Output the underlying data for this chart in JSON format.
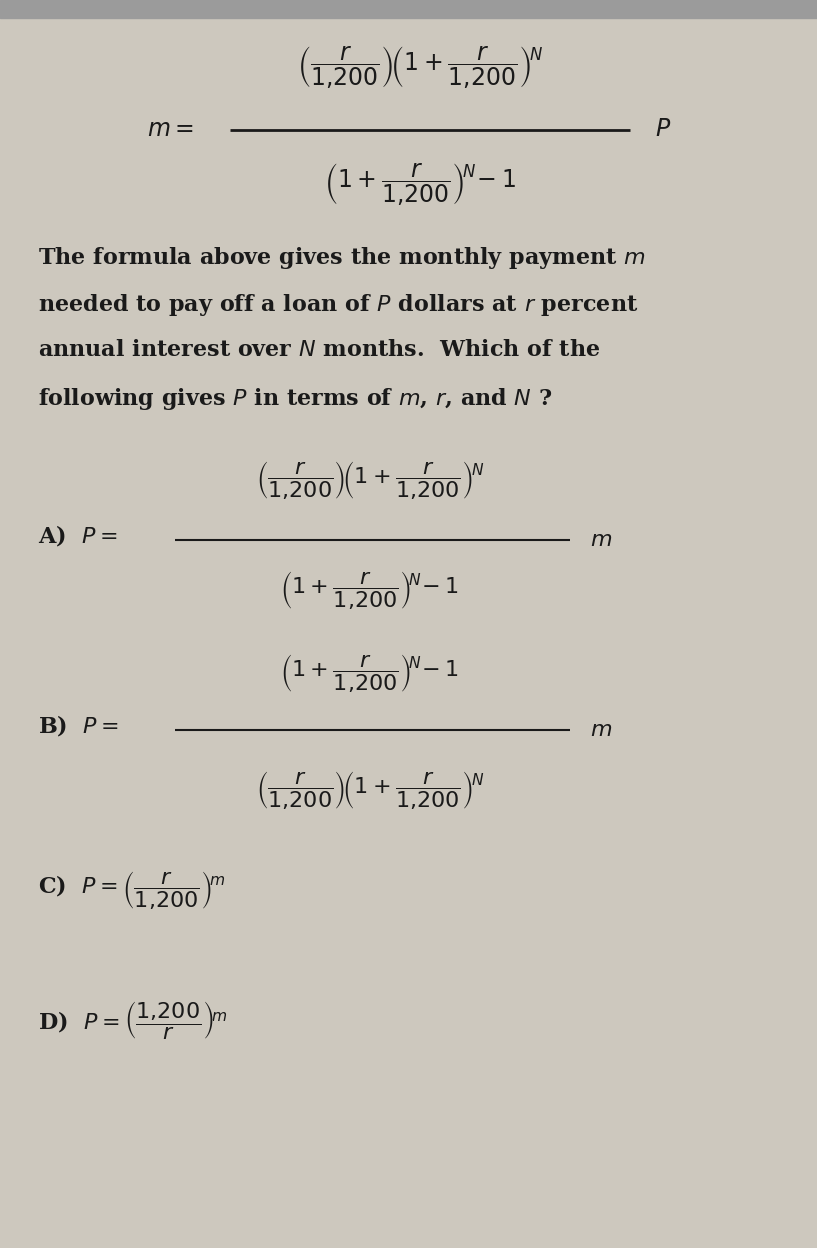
{
  "bg_color": "#cdc8be",
  "text_color": "#1a1a1a",
  "fig_width": 8.17,
  "fig_height": 12.48,
  "dpi": 100,
  "main_formula_num": "$\\left(\\dfrac{r}{1{,}200}\\right)\\!\\left(1+\\dfrac{r}{1{,}200}\\right)^{\\!N}$",
  "main_formula_den": "$\\left(1+\\dfrac{r}{1{,}200}\\right)^{\\!N}\\!-1$",
  "desc_line1": "The formula above gives the monthly payment $m$",
  "desc_line2": "needed to pay off a loan of $P$ dollars at $r$ percent",
  "desc_line3": "annual interest over $N$ months.  Which of the",
  "desc_line4": "following gives $P$ in terms of $m$, $r$, and $N$ ?",
  "A_num": "$\\left(\\dfrac{r}{1{,}200}\\right)\\!\\left(1+\\dfrac{r}{1{,}200}\\right)^{\\!N}$",
  "A_den": "$\\left(1+\\dfrac{r}{1{,}200}\\right)^{\\!N}\\!-1$",
  "B_num": "$\\left(1+\\dfrac{r}{1{,}200}\\right)^{\\!N}\\!-1$",
  "B_den": "$\\left(\\dfrac{r}{1{,}200}\\right)\\!\\left(1+\\dfrac{r}{1{,}200}\\right)^{\\!N}$",
  "C_formula": "$P=\\left(\\dfrac{r}{1{,}200}\\right)^{\\!m}$",
  "D_formula": "$P=\\left(\\dfrac{1{,}200}{r}\\right)^{\\!m}$",
  "fs_main": 17,
  "fs_text": 16,
  "fs_choice": 16,
  "fs_label": 16
}
